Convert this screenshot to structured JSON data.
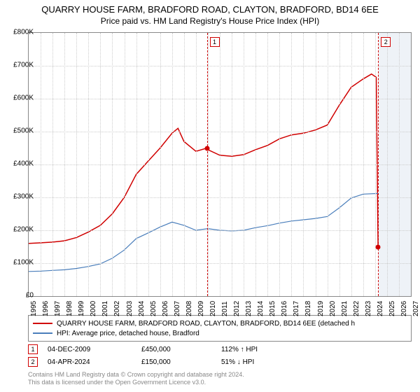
{
  "title": "QUARRY HOUSE FARM, BRADFORD ROAD, CLAYTON, BRADFORD, BD14 6EE",
  "subtitle": "Price paid vs. HM Land Registry's House Price Index (HPI)",
  "chart": {
    "type": "line",
    "background_color": "#ffffff",
    "grid_color": "#cccccc",
    "border_color": "#888888",
    "future_band_color": "#eef2f7",
    "x_axis": {
      "min_year": 1995,
      "max_year": 2027,
      "tick_years": [
        1995,
        1996,
        1997,
        1998,
        1999,
        2000,
        2001,
        2002,
        2003,
        2004,
        2005,
        2006,
        2007,
        2008,
        2009,
        2010,
        2011,
        2012,
        2013,
        2014,
        2015,
        2016,
        2017,
        2018,
        2019,
        2020,
        2021,
        2022,
        2023,
        2024,
        2025,
        2026,
        2027
      ],
      "data_end_year": 2024.3,
      "label_fontsize": 10
    },
    "y_axis": {
      "min": 0,
      "max": 800000,
      "tick_step": 100000,
      "tick_labels": [
        "£0",
        "£100K",
        "£200K",
        "£300K",
        "£400K",
        "£500K",
        "£600K",
        "£700K",
        "£800K"
      ],
      "label_fontsize": 10
    },
    "series": [
      {
        "name": "price_paid",
        "label": "QUARRY HOUSE FARM, BRADFORD ROAD, CLAYTON, BRADFORD, BD14 6EE (detached h",
        "color": "#d00000",
        "line_width": 1.5,
        "points": [
          [
            1995,
            160000
          ],
          [
            1996,
            162000
          ],
          [
            1997,
            164000
          ],
          [
            1998,
            168000
          ],
          [
            1999,
            178000
          ],
          [
            2000,
            195000
          ],
          [
            2001,
            215000
          ],
          [
            2002,
            250000
          ],
          [
            2003,
            300000
          ],
          [
            2004,
            370000
          ],
          [
            2005,
            410000
          ],
          [
            2006,
            450000
          ],
          [
            2007,
            495000
          ],
          [
            2007.5,
            510000
          ],
          [
            2008,
            470000
          ],
          [
            2009,
            440000
          ],
          [
            2009.92,
            450000
          ],
          [
            2010,
            445000
          ],
          [
            2011,
            428000
          ],
          [
            2012,
            425000
          ],
          [
            2013,
            430000
          ],
          [
            2014,
            445000
          ],
          [
            2015,
            458000
          ],
          [
            2016,
            478000
          ],
          [
            2017,
            490000
          ],
          [
            2018,
            495000
          ],
          [
            2019,
            505000
          ],
          [
            2020,
            520000
          ],
          [
            2021,
            580000
          ],
          [
            2022,
            635000
          ],
          [
            2023,
            660000
          ],
          [
            2023.7,
            675000
          ],
          [
            2024.1,
            665000
          ],
          [
            2024.25,
            150000
          ]
        ]
      },
      {
        "name": "hpi",
        "label": "HPI: Average price, detached house, Bradford",
        "color": "#4a7ebb",
        "line_width": 1.2,
        "points": [
          [
            1995,
            75000
          ],
          [
            1996,
            76000
          ],
          [
            1997,
            78000
          ],
          [
            1998,
            80000
          ],
          [
            1999,
            84000
          ],
          [
            2000,
            90000
          ],
          [
            2001,
            98000
          ],
          [
            2002,
            115000
          ],
          [
            2003,
            140000
          ],
          [
            2004,
            175000
          ],
          [
            2005,
            192000
          ],
          [
            2006,
            210000
          ],
          [
            2007,
            225000
          ],
          [
            2008,
            215000
          ],
          [
            2009,
            200000
          ],
          [
            2010,
            205000
          ],
          [
            2011,
            200000
          ],
          [
            2012,
            198000
          ],
          [
            2013,
            200000
          ],
          [
            2014,
            208000
          ],
          [
            2015,
            214000
          ],
          [
            2016,
            222000
          ],
          [
            2017,
            228000
          ],
          [
            2018,
            232000
          ],
          [
            2019,
            236000
          ],
          [
            2020,
            242000
          ],
          [
            2021,
            268000
          ],
          [
            2022,
            298000
          ],
          [
            2023,
            310000
          ],
          [
            2024.25,
            312000
          ]
        ]
      }
    ],
    "markers": [
      {
        "id": "1",
        "year": 2009.92,
        "value": 450000
      },
      {
        "id": "2",
        "year": 2024.26,
        "value": 150000
      }
    ]
  },
  "legend": {
    "border_color": "#888888",
    "items": [
      {
        "color": "#d00000",
        "label": "QUARRY HOUSE FARM, BRADFORD ROAD, CLAYTON, BRADFORD, BD14 6EE (detached h"
      },
      {
        "color": "#4a7ebb",
        "label": "HPI: Average price, detached house, Bradford"
      }
    ]
  },
  "events": [
    {
      "id": "1",
      "date": "04-DEC-2009",
      "price": "£450,000",
      "hpi": "112% ↑ HPI"
    },
    {
      "id": "2",
      "date": "04-APR-2024",
      "price": "£150,000",
      "hpi": "51% ↓ HPI"
    }
  ],
  "footer": {
    "line1": "Contains HM Land Registry data © Crown copyright and database right 2024.",
    "line2": "This data is licensed under the Open Government Licence v3.0.",
    "color": "#888888"
  }
}
